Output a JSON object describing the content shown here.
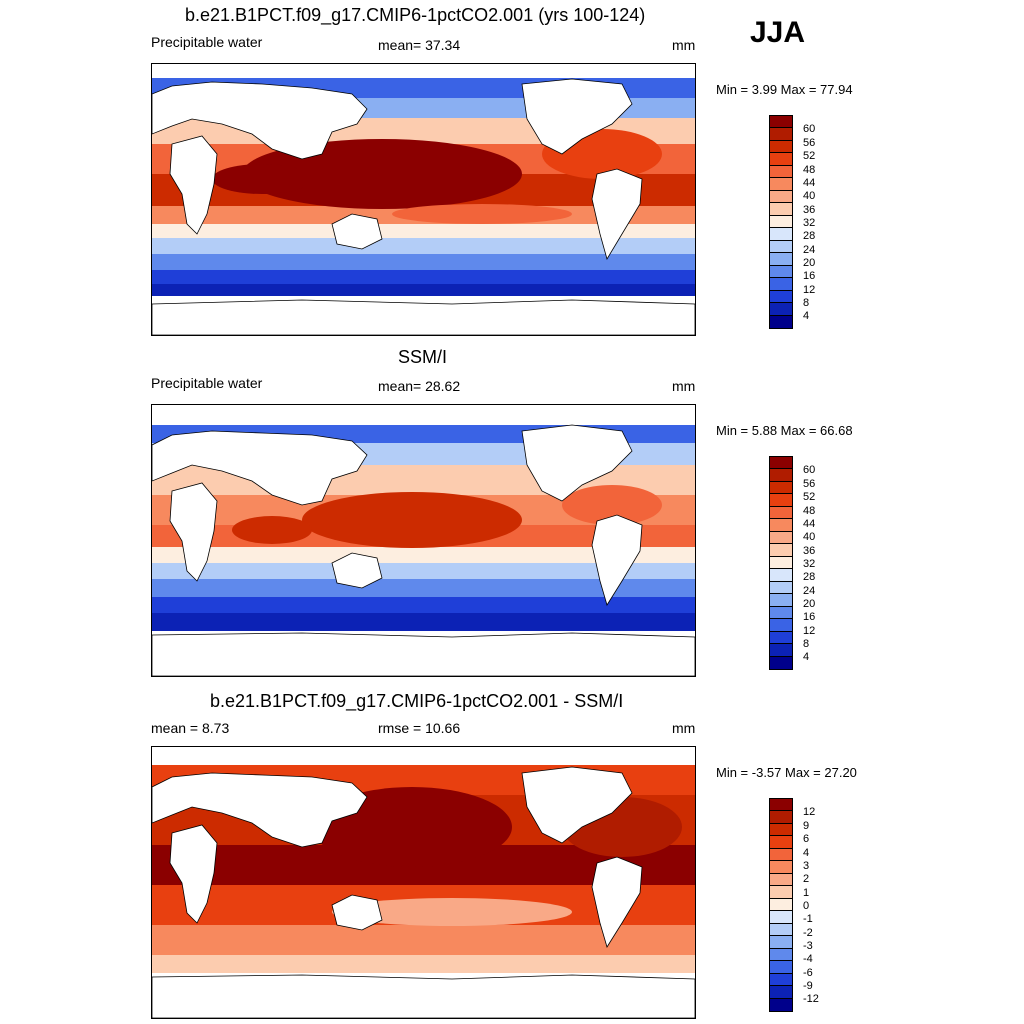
{
  "season": "JJA",
  "panels": [
    {
      "title": "b.e21.B1PCT.f09_g17.CMIP6-1pctCO2.001 (yrs 100-124)",
      "left": "Precipitable water",
      "mid": "mean=  37.34",
      "right": "mm",
      "minmax": "Min =   3.99 Max =  77.94",
      "labels": [
        "60",
        "56",
        "52",
        "48",
        "44",
        "40",
        "36",
        "32",
        "28",
        "24",
        "20",
        "16",
        "12",
        "8",
        "4"
      ]
    },
    {
      "title": "SSM/I",
      "left": "Precipitable water",
      "mid": "mean=  28.62",
      "right": "mm",
      "minmax": "Min =   5.88 Max =  66.68",
      "labels": [
        "60",
        "56",
        "52",
        "48",
        "44",
        "40",
        "36",
        "32",
        "28",
        "24",
        "20",
        "16",
        "12",
        "8",
        "4"
      ]
    },
    {
      "title": "b.e21.B1PCT.f09_g17.CMIP6-1pctCO2.001 - SSM/I",
      "left": "mean =   8.73",
      "mid": "rmse =  10.66",
      "right": "mm",
      "minmax": "Min =  -3.57 Max =  27.20",
      "labels": [
        "12",
        "9",
        "6",
        "4",
        "3",
        "2",
        "1",
        "0",
        "-1",
        "-2",
        "-3",
        "-4",
        "-6",
        "-9",
        "-12"
      ]
    }
  ],
  "colors": [
    "#8b0000",
    "#b01c00",
    "#cc2b00",
    "#e84010",
    "#f2643a",
    "#f7895e",
    "#f9a987",
    "#fcccaf",
    "#fdeee0",
    "#d8e6fb",
    "#b3cdf7",
    "#8aaff2",
    "#5f89ec",
    "#3a63e5",
    "#1f3fd8",
    "#0c22b5",
    "#00008b"
  ]
}
